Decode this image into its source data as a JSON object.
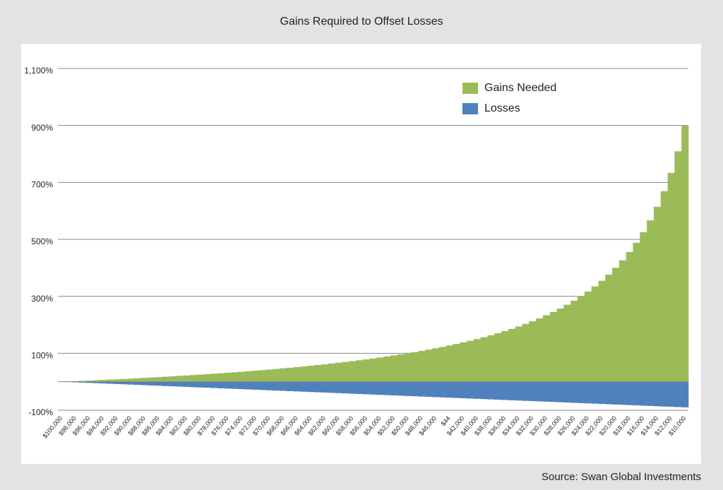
{
  "chart_data": {
    "type": "bar",
    "stacked": false,
    "title": "Gains Required to Offset Losses",
    "source": "Source: Swan Global Investments",
    "categories": [
      "$100,000",
      null,
      "$98,000",
      null,
      "$96,000",
      null,
      "$94,000",
      null,
      "$92,000",
      null,
      "$90,000",
      null,
      "$88,000",
      null,
      "$86,000",
      null,
      "$84,000",
      null,
      "$82,000",
      null,
      "$80,000",
      null,
      "$78,000",
      null,
      "$76,000",
      null,
      "$74,000",
      null,
      "$72,000",
      null,
      "$70,000",
      null,
      "$68,000",
      null,
      "$66,000",
      null,
      "$64,000",
      null,
      "$62,000",
      null,
      "$60,000",
      null,
      "$58,000",
      null,
      "$56,000",
      null,
      "$54,000",
      null,
      "$52,000",
      null,
      "$50,000",
      null,
      "$48,000",
      null,
      "$46,000",
      null,
      "$44",
      null,
      "$42,000",
      null,
      "$40,000",
      null,
      "$38,000",
      null,
      "$36,000",
      null,
      "$34,000",
      null,
      "$32,000",
      null,
      "$30,000",
      null,
      "$28,000",
      null,
      "$26,000",
      null,
      "$24,000",
      null,
      "$22,000",
      null,
      "$20,000",
      null,
      "$18,000",
      null,
      "$16,000",
      null,
      "$14,000",
      null,
      "$12,000",
      null,
      "$10,000"
    ],
    "series": [
      {
        "name": "Gains Needed",
        "color": "#9bbb59",
        "values": [
          0,
          1.0,
          2.0,
          3.1,
          4.2,
          5.3,
          6.4,
          7.5,
          8.7,
          9.9,
          11.1,
          12.4,
          13.6,
          14.9,
          16.3,
          17.6,
          19.0,
          20.5,
          22.0,
          23.5,
          25.0,
          26.6,
          28.2,
          29.9,
          31.6,
          33.3,
          35.1,
          37.0,
          38.9,
          40.8,
          42.9,
          44.9,
          47.1,
          49.3,
          51.5,
          53.8,
          56.3,
          58.7,
          61.3,
          63.9,
          66.7,
          69.5,
          72.4,
          75.4,
          78.6,
          81.8,
          85.2,
          88.7,
          92.3,
          96.1,
          100,
          104.1,
          108.3,
          112.8,
          117.4,
          122.2,
          127.3,
          132.6,
          138.1,
          143.9,
          150,
          156.4,
          163.2,
          170.3,
          177.8,
          185.7,
          194.1,
          203.0,
          212.5,
          222.6,
          233.3,
          244.8,
          257.1,
          270.4,
          284.6,
          300,
          316.7,
          334.8,
          354.5,
          376.2,
          400,
          426.3,
          455.6,
          488.2,
          525,
          566.7,
          614.3,
          669.2,
          733.3,
          809.1,
          900
        ]
      },
      {
        "name": "Losses",
        "color": "#4f81bd",
        "values": [
          0,
          -1,
          -2,
          -3,
          -4,
          -5,
          -6,
          -7,
          -8,
          -9,
          -10,
          -11,
          -12,
          -13,
          -14,
          -15,
          -16,
          -17,
          -18,
          -19,
          -20,
          -21,
          -22,
          -23,
          -24,
          -25,
          -26,
          -27,
          -28,
          -29,
          -30,
          -31,
          -32,
          -33,
          -34,
          -35,
          -36,
          -37,
          -38,
          -39,
          -40,
          -41,
          -42,
          -43,
          -44,
          -45,
          -46,
          -47,
          -48,
          -49,
          -50,
          -51,
          -52,
          -53,
          -54,
          -55,
          -56,
          -57,
          -58,
          -59,
          -60,
          -61,
          -62,
          -63,
          -64,
          -65,
          -66,
          -67,
          -68,
          -69,
          -70,
          -71,
          -72,
          -73,
          -74,
          -75,
          -76,
          -77,
          -78,
          -79,
          -80,
          -81,
          -82,
          -83,
          -84,
          -85,
          -86,
          -87,
          -88,
          -89,
          -90
        ]
      }
    ],
    "ylim": [
      -100,
      1100
    ],
    "yticks": [
      {
        "value": -100,
        "label": "-100%"
      },
      {
        "value": 100,
        "label": "100%"
      },
      {
        "value": 300,
        "label": "300%"
      },
      {
        "value": 500,
        "label": "500%"
      },
      {
        "value": 700,
        "label": "700%"
      },
      {
        "value": 900,
        "label": "900%"
      },
      {
        "value": 1100,
        "label": "1,100%"
      }
    ],
    "grid": true
  }
}
